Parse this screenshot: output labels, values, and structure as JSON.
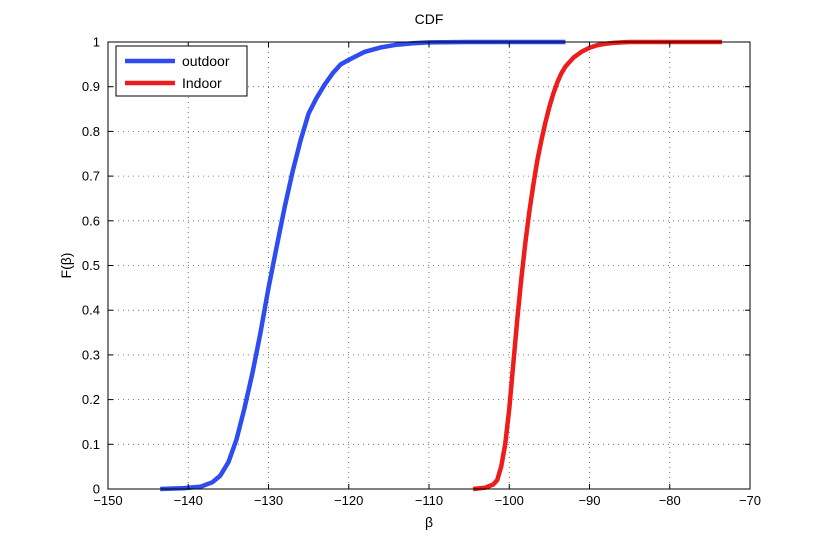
{
  "chart_data": {
    "type": "line",
    "title": "CDF",
    "xlabel": "β",
    "ylabel": "F(β)",
    "xlim": [
      -150,
      -70
    ],
    "ylim": [
      0,
      1
    ],
    "xticks": [
      -150,
      -140,
      -130,
      -120,
      -110,
      -100,
      -90,
      -80,
      -70
    ],
    "xtick_labels": [
      "−150",
      "−140",
      "−130",
      "−120",
      "−110",
      "−100",
      "−90",
      "−80",
      "−70"
    ],
    "yticks": [
      0,
      0.1,
      0.2,
      0.3,
      0.4,
      0.5,
      0.6,
      0.7,
      0.8,
      0.9,
      1
    ],
    "ytick_labels": [
      "0",
      "0.1",
      "0.2",
      "0.3",
      "0.4",
      "0.5",
      "0.6",
      "0.7",
      "0.8",
      "0.9",
      "1"
    ],
    "grid": true,
    "legend_position": "top-left",
    "series": [
      {
        "name": "outdoor",
        "color": "#2e4cf0",
        "x": [
          -143.5,
          -140.5,
          -138.5,
          -137.0,
          -136.0,
          -135.0,
          -134.0,
          -133.0,
          -132.0,
          -131.0,
          -130.0,
          -129.0,
          -128.0,
          -127.0,
          -126.0,
          -125.0,
          -124.0,
          -123.0,
          -122.0,
          -121.0,
          -120.0,
          -118.0,
          -116.0,
          -114.0,
          -112.0,
          -110.0,
          -105.0,
          -100.0,
          -93.0
        ],
        "y": [
          0.0,
          0.002,
          0.005,
          0.015,
          0.03,
          0.06,
          0.11,
          0.18,
          0.26,
          0.35,
          0.45,
          0.54,
          0.63,
          0.71,
          0.78,
          0.84,
          0.875,
          0.905,
          0.93,
          0.95,
          0.96,
          0.978,
          0.988,
          0.994,
          0.997,
          0.999,
          1.0,
          1.0,
          1.0
        ]
      },
      {
        "name": "Indoor",
        "color": "#ee1c1c",
        "x": [
          -104.5,
          -103.0,
          -102.0,
          -101.5,
          -101.0,
          -100.5,
          -100.0,
          -99.5,
          -99.0,
          -98.5,
          -98.0,
          -97.5,
          -97.0,
          -96.5,
          -96.0,
          -95.5,
          -95.0,
          -94.5,
          -94.0,
          -93.5,
          -93.0,
          -92.0,
          -91.0,
          -90.0,
          -89.0,
          -88.0,
          -87.0,
          -86.0,
          -85.0,
          -83.0,
          -80.0,
          -76.0,
          -73.5
        ],
        "y": [
          0.0,
          0.003,
          0.01,
          0.02,
          0.05,
          0.1,
          0.18,
          0.28,
          0.38,
          0.47,
          0.55,
          0.62,
          0.68,
          0.735,
          0.78,
          0.82,
          0.855,
          0.885,
          0.91,
          0.93,
          0.945,
          0.965,
          0.978,
          0.987,
          0.993,
          0.996,
          0.998,
          0.999,
          1.0,
          1.0,
          1.0,
          1.0,
          1.0
        ]
      }
    ]
  }
}
